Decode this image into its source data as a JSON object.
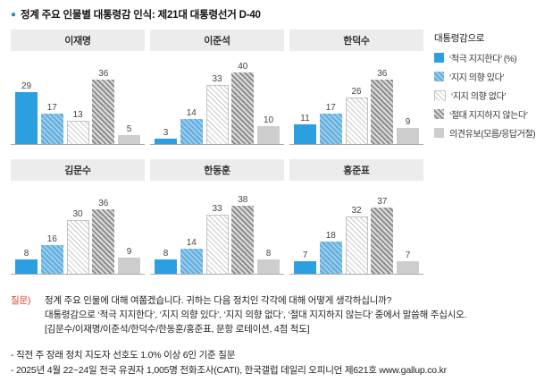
{
  "title": "정계 주요 인물별 대통령감 인식: 제21대 대통령선거 D-40",
  "legend": {
    "heading": "대통령감으로",
    "items": [
      {
        "label": "‘적극 지지한다’ (%)"
      },
      {
        "label": "‘지지 의향 있다’"
      },
      {
        "label": "‘지지 의향 없다’"
      },
      {
        "label": "‘절대 지지하지 않는다’"
      },
      {
        "label": "의견유보(모름/응답거절)"
      }
    ]
  },
  "chart_data": {
    "type": "bar",
    "unit": "%",
    "title": "정계 주요 인물별 대통령감 인식: 제21대 대통령선거 D-40",
    "categories": [
      "적극 지지한다",
      "지지 의향 있다",
      "지지 의향 없다",
      "절대 지지하지 않는다",
      "의견유보(모름/응답거절)"
    ],
    "ylim": [
      0,
      45
    ],
    "grid": false,
    "legend_position": "right",
    "charts": [
      {
        "name": "이재명",
        "values": [
          29,
          17,
          13,
          36,
          5
        ]
      },
      {
        "name": "이준석",
        "values": [
          3,
          14,
          33,
          40,
          10
        ]
      },
      {
        "name": "한덕수",
        "values": [
          11,
          17,
          26,
          36,
          9
        ]
      },
      {
        "name": "김문수",
        "values": [
          8,
          16,
          30,
          36,
          9
        ]
      },
      {
        "name": "한동훈",
        "values": [
          8,
          14,
          33,
          38,
          8
        ]
      },
      {
        "name": "홍준표",
        "values": [
          7,
          18,
          32,
          37,
          7
        ]
      }
    ],
    "colors": {
      "strong_support": "#2b9fdf",
      "willing_support": "#7bbce6",
      "not_willing": "#e6e6e6",
      "never_support": "#a8a8a8",
      "no_opinion": "#cdcdcd"
    }
  },
  "question": {
    "label": "질문)",
    "lines": [
      "정계 주요 인물에 대해 여쭙겠습니다. 귀하는 다음 정치인 각각에 대해 어떻게 생각하십니까?",
      "대통령감으로 ‘적극 지지한다’, ‘지지 의향 있다’, ‘지지 의향 없다’, ‘절대 지지하지 않는다’ 중에서 말씀해 주십시오.",
      "[김문수/이재명/이준석/한덕수/한동훈/홍준표, 문항 로테이션, 4점 척도]"
    ]
  },
  "footnotes": [
    "- 직전 주 장래 정치 지도자 선호도 1.0% 이상 6인 기준 질문",
    "- 2025년 4월 22~24일 전국 유권자 1,005명 전화조사(CATI), 한국갤럽 데일리 오피니언 제621호 www.gallup.co.kr"
  ]
}
